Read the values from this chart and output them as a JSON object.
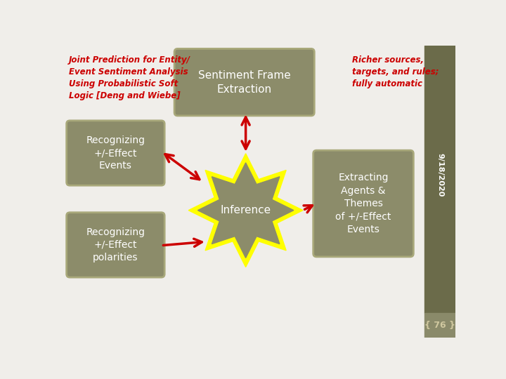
{
  "bg_color": "#f0eeea",
  "sidebar_color": "#6b6b4a",
  "sidebar_lighter": "#8a8a6a",
  "box_color": "#8c8c6a",
  "box_edge_color": "#a8a87a",
  "star_outer_color": "#ffff00",
  "star_inner_color": "#8c8c6a",
  "arrow_color": "#cc0000",
  "text_color_white": "#ffffff",
  "text_color_red": "#cc0000",
  "title_top_left": "Joint Prediction for Entity/\nEvent Sentiment Analysis\nUsing Probabilistic Soft\nLogic [Deng and Wiebe]",
  "title_top_right": "Richer sources,\ntargets, and rules;\nfully automatic",
  "box_top_text": "Sentiment Frame\nExtraction",
  "box_left1_text": "Recognizing\n+/-Effect\nEvents",
  "box_left2_text": "Recognizing\n+/-Effect\npolarities",
  "box_right_text": "Extracting\nAgents &\nThemes\nof +/-Effect\nEvents",
  "center_text": "Inference",
  "sidebar_text": "9/18/2020",
  "page_num": "76"
}
